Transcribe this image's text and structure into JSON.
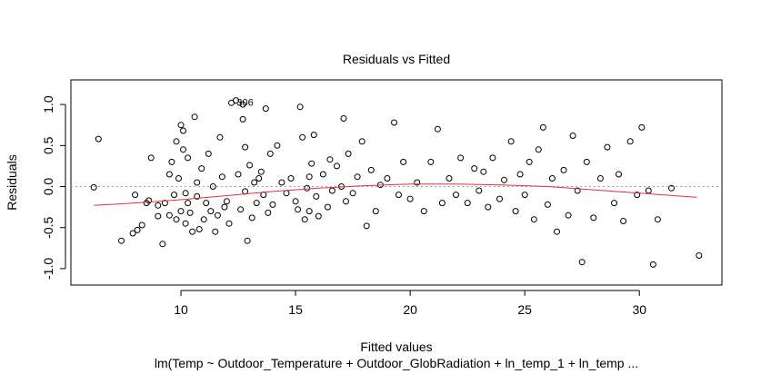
{
  "chart_data": {
    "type": "scatter",
    "title": "Residuals vs Fitted",
    "xlabel": "Fitted values",
    "ylabel": "Residuals",
    "subtitle": "lm(Temp ~ Outdoor_Temperature + Outdoor_GlobRadiation + ln_temp_1 + ln_temp ...",
    "xlim": [
      5.2,
      33.6
    ],
    "ylim": [
      -1.2,
      1.3
    ],
    "x_ticks": [
      10,
      15,
      20,
      25,
      30
    ],
    "y_ticks": [
      -1.0,
      -0.5,
      0.0,
      0.5,
      1.0
    ],
    "x_tick_labels": [
      "10",
      "15",
      "20",
      "25",
      "30"
    ],
    "y_tick_labels": [
      "-1.0",
      "-0.5",
      "0.0",
      "0.5",
      "1.0"
    ],
    "grid": false,
    "reference_line": {
      "y": 0,
      "style": "dotted",
      "color": "#a0a0a0"
    },
    "smoother": {
      "color": "#e0304a",
      "x": [
        6.2,
        8,
        10,
        12,
        14,
        16,
        18,
        20,
        22,
        24,
        26,
        28,
        30,
        32.5
      ],
      "y": [
        -0.23,
        -0.2,
        -0.16,
        -0.11,
        -0.06,
        -0.02,
        0.01,
        0.03,
        0.03,
        0.02,
        0.0,
        -0.04,
        -0.08,
        -0.13
      ]
    },
    "point_labels": [
      {
        "text": "306",
        "x": 12.8,
        "y": 1.03
      }
    ],
    "series": [
      {
        "marker": "open-circle",
        "color": "#000000",
        "points": [
          [
            6.2,
            -0.01
          ],
          [
            6.4,
            0.58
          ],
          [
            7.4,
            -0.66
          ],
          [
            7.9,
            -0.57
          ],
          [
            8.0,
            -0.1
          ],
          [
            8.1,
            -0.53
          ],
          [
            8.3,
            -0.47
          ],
          [
            8.5,
            -0.2
          ],
          [
            8.6,
            -0.17
          ],
          [
            8.7,
            0.35
          ],
          [
            9.0,
            -0.36
          ],
          [
            9.0,
            -0.23
          ],
          [
            9.2,
            -0.7
          ],
          [
            9.3,
            -0.2
          ],
          [
            9.5,
            0.15
          ],
          [
            9.5,
            -0.35
          ],
          [
            9.6,
            0.3
          ],
          [
            9.7,
            -0.1
          ],
          [
            9.8,
            -0.4
          ],
          [
            9.8,
            0.55
          ],
          [
            9.9,
            0.1
          ],
          [
            10.0,
            0.75
          ],
          [
            10.0,
            -0.3
          ],
          [
            10.1,
            0.68
          ],
          [
            10.1,
            0.45
          ],
          [
            10.2,
            -0.08
          ],
          [
            10.2,
            -0.45
          ],
          [
            10.3,
            -0.2
          ],
          [
            10.3,
            0.35
          ],
          [
            10.4,
            -0.32
          ],
          [
            10.5,
            -0.55
          ],
          [
            10.6,
            0.85
          ],
          [
            10.7,
            -0.12
          ],
          [
            10.7,
            0.05
          ],
          [
            10.8,
            -0.52
          ],
          [
            10.9,
            0.22
          ],
          [
            11.0,
            -0.4
          ],
          [
            11.1,
            -0.2
          ],
          [
            11.2,
            0.4
          ],
          [
            11.3,
            -0.3
          ],
          [
            11.4,
            0.0
          ],
          [
            11.5,
            -0.55
          ],
          [
            11.6,
            -0.35
          ],
          [
            11.7,
            0.6
          ],
          [
            11.8,
            0.12
          ],
          [
            11.9,
            -0.25
          ],
          [
            12.0,
            -0.18
          ],
          [
            12.1,
            -0.45
          ],
          [
            12.2,
            1.02
          ],
          [
            12.4,
            1.05
          ],
          [
            12.5,
            0.15
          ],
          [
            12.6,
            -0.28
          ],
          [
            12.7,
            1.0
          ],
          [
            12.7,
            0.82
          ],
          [
            12.8,
            0.48
          ],
          [
            12.8,
            -0.06
          ],
          [
            12.9,
            -0.66
          ],
          [
            13.0,
            0.26
          ],
          [
            13.1,
            -0.38
          ],
          [
            13.2,
            0.05
          ],
          [
            13.3,
            -0.2
          ],
          [
            13.4,
            0.1
          ],
          [
            13.5,
            0.18
          ],
          [
            13.6,
            -0.1
          ],
          [
            13.7,
            0.95
          ],
          [
            13.8,
            -0.32
          ],
          [
            13.9,
            0.4
          ],
          [
            14.0,
            -0.22
          ],
          [
            14.2,
            0.5
          ],
          [
            14.4,
            0.05
          ],
          [
            14.6,
            -0.08
          ],
          [
            14.8,
            0.1
          ],
          [
            15.0,
            -0.18
          ],
          [
            15.1,
            -0.28
          ],
          [
            15.2,
            0.97
          ],
          [
            15.3,
            0.6
          ],
          [
            15.4,
            -0.4
          ],
          [
            15.5,
            -0.02
          ],
          [
            15.6,
            0.12
          ],
          [
            15.6,
            -0.3
          ],
          [
            15.7,
            0.28
          ],
          [
            15.8,
            0.63
          ],
          [
            15.9,
            -0.12
          ],
          [
            16.0,
            -0.36
          ],
          [
            16.2,
            0.15
          ],
          [
            16.4,
            -0.25
          ],
          [
            16.5,
            0.33
          ],
          [
            16.6,
            -0.05
          ],
          [
            16.8,
            0.25
          ],
          [
            17.0,
            0.0
          ],
          [
            17.1,
            0.83
          ],
          [
            17.2,
            -0.18
          ],
          [
            17.3,
            0.4
          ],
          [
            17.5,
            -0.08
          ],
          [
            17.7,
            0.12
          ],
          [
            17.9,
            0.55
          ],
          [
            18.1,
            -0.48
          ],
          [
            18.3,
            0.2
          ],
          [
            18.5,
            -0.3
          ],
          [
            18.7,
            0.02
          ],
          [
            19.0,
            0.1
          ],
          [
            19.3,
            0.78
          ],
          [
            19.5,
            -0.1
          ],
          [
            19.7,
            0.3
          ],
          [
            20.0,
            -0.15
          ],
          [
            20.3,
            0.05
          ],
          [
            20.6,
            -0.3
          ],
          [
            20.9,
            0.3
          ],
          [
            21.2,
            0.7
          ],
          [
            21.4,
            -0.2
          ],
          [
            21.7,
            0.1
          ],
          [
            22.0,
            -0.1
          ],
          [
            22.2,
            0.35
          ],
          [
            22.5,
            -0.2
          ],
          [
            22.8,
            0.22
          ],
          [
            23.0,
            -0.05
          ],
          [
            23.2,
            0.18
          ],
          [
            23.4,
            -0.25
          ],
          [
            23.6,
            0.35
          ],
          [
            23.9,
            -0.15
          ],
          [
            24.1,
            0.08
          ],
          [
            24.4,
            0.55
          ],
          [
            24.6,
            -0.3
          ],
          [
            24.8,
            0.15
          ],
          [
            25.0,
            -0.1
          ],
          [
            25.2,
            0.3
          ],
          [
            25.4,
            -0.4
          ],
          [
            25.6,
            0.45
          ],
          [
            25.8,
            0.72
          ],
          [
            26.0,
            -0.22
          ],
          [
            26.2,
            0.1
          ],
          [
            26.4,
            -0.55
          ],
          [
            26.7,
            0.2
          ],
          [
            26.9,
            -0.35
          ],
          [
            27.1,
            0.62
          ],
          [
            27.3,
            -0.05
          ],
          [
            27.5,
            -0.92
          ],
          [
            27.7,
            0.3
          ],
          [
            28.0,
            -0.38
          ],
          [
            28.3,
            0.1
          ],
          [
            28.6,
            0.48
          ],
          [
            28.9,
            -0.2
          ],
          [
            29.1,
            0.15
          ],
          [
            29.3,
            -0.42
          ],
          [
            29.6,
            0.55
          ],
          [
            29.9,
            -0.1
          ],
          [
            30.1,
            0.72
          ],
          [
            30.4,
            -0.05
          ],
          [
            30.6,
            -0.95
          ],
          [
            30.8,
            -0.4
          ],
          [
            31.4,
            -0.02
          ],
          [
            32.6,
            -0.84
          ]
        ]
      }
    ]
  }
}
